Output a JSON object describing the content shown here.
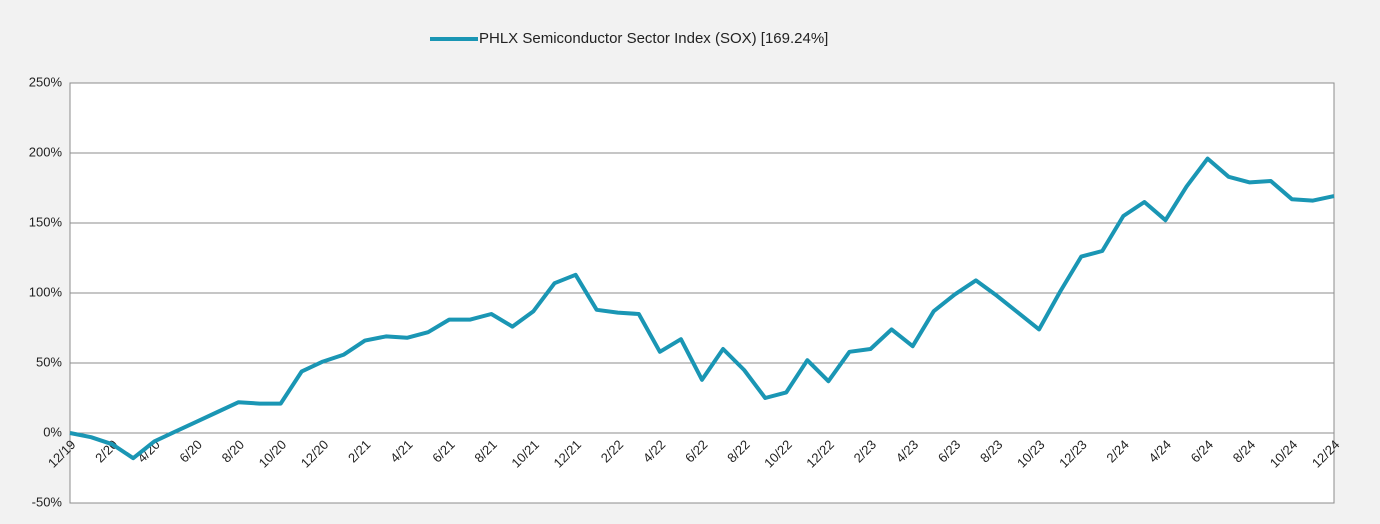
{
  "chart_data": {
    "type": "line",
    "categories": [
      "12/19",
      null,
      "2/20",
      null,
      "4/20",
      null,
      "6/20",
      null,
      "8/20",
      null,
      "10/20",
      null,
      "12/20",
      null,
      "2/21",
      null,
      "4/21",
      null,
      "6/21",
      null,
      "8/21",
      null,
      "10/21",
      null,
      "12/21",
      null,
      "2/22",
      null,
      "4/22",
      null,
      "6/22",
      null,
      "8/22",
      null,
      "10/22",
      null,
      "12/22",
      null,
      "2/23",
      null,
      "4/23",
      null,
      "6/23",
      null,
      "8/23",
      null,
      "10/23",
      null,
      "12/23",
      null,
      "2/24",
      null,
      "4/24",
      null,
      "6/24",
      null,
      "8/24",
      null,
      "10/24",
      null,
      "12/24"
    ],
    "series": [
      {
        "name": "PHLX Semiconductor Sector Index (SOX) [169.24%]",
        "color": "#1a96b4",
        "values": [
          0,
          -3,
          -8,
          -18,
          -6,
          1,
          8,
          15,
          22,
          21,
          21,
          44,
          51,
          56,
          66,
          69,
          68,
          72,
          81,
          81,
          85,
          76,
          87,
          107,
          113,
          88,
          86,
          85,
          58,
          67,
          38,
          60,
          45,
          25,
          29,
          52,
          37,
          58,
          60,
          74,
          62,
          87,
          99,
          109,
          98,
          86,
          74,
          101,
          126,
          130,
          155,
          165,
          152,
          176,
          196,
          183,
          179,
          180,
          167,
          166,
          169.24
        ]
      }
    ],
    "ylim": [
      -50,
      250
    ],
    "yticks": [
      {
        "value": -50,
        "label": "-50%"
      },
      {
        "value": 0,
        "label": "0%"
      },
      {
        "value": 50,
        "label": "50%"
      },
      {
        "value": 100,
        "label": "100%"
      },
      {
        "value": 150,
        "label": "150%"
      },
      {
        "value": 200,
        "label": "200%"
      },
      {
        "value": 250,
        "label": "250%"
      }
    ],
    "grid": true,
    "legend": "top"
  }
}
